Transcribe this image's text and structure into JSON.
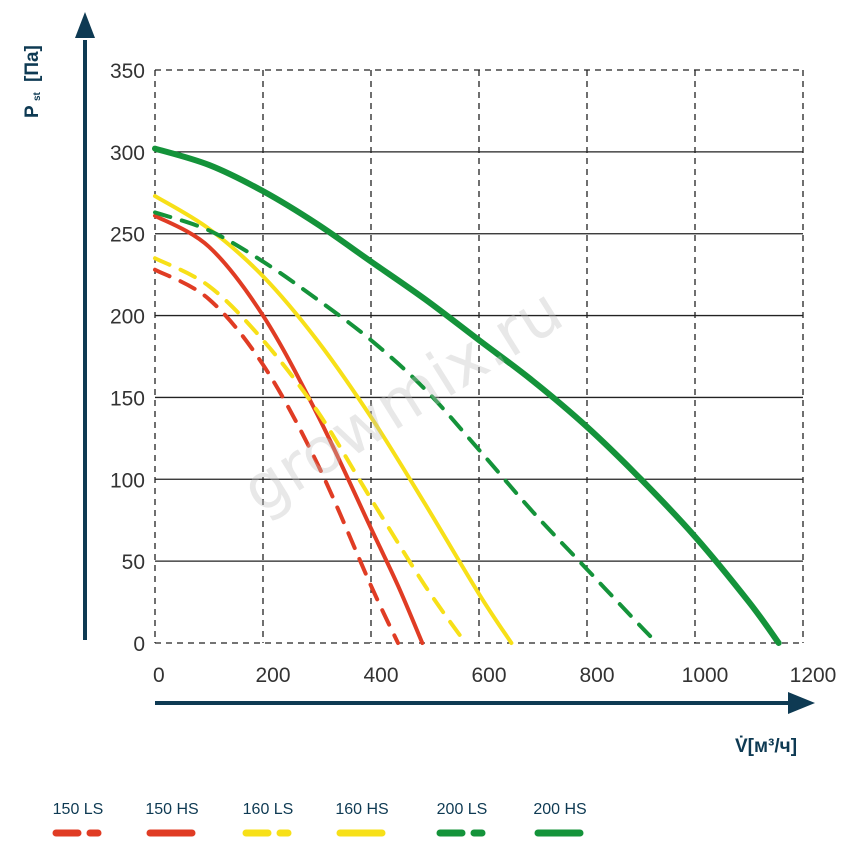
{
  "chart_data": {
    "type": "line",
    "watermark": "growmix.ru",
    "xlabel": "V̇[м³/ч]",
    "ylabel": "P st [Па]",
    "ylabel_main": "P",
    "ylabel_sub": "st",
    "ylabel_unit": "[Па]",
    "xlim": [
      0,
      1200
    ],
    "ylim": [
      0,
      350
    ],
    "x_ticks": [
      0,
      200,
      400,
      600,
      800,
      1000,
      1200
    ],
    "y_ticks": [
      0,
      50,
      100,
      150,
      200,
      250,
      300,
      350
    ],
    "grid": true,
    "legend_position": "bottom",
    "colors": {
      "red": "#e03c24",
      "yellow": "#f7e018",
      "green": "#14933a",
      "axis": "#0e3a53",
      "grid": "#222222"
    },
    "series": [
      {
        "name": "150 LS",
        "color": "#e03c24",
        "style": "dashed",
        "x": [
          0,
          100,
          200,
          300,
          400,
          450
        ],
        "y": [
          228,
          210,
          170,
          110,
          35,
          0
        ]
      },
      {
        "name": "150 HS",
        "color": "#e03c24",
        "style": "solid",
        "x": [
          0,
          100,
          200,
          300,
          400,
          450,
          495
        ],
        "y": [
          261,
          242,
          200,
          140,
          70,
          35,
          0
        ]
      },
      {
        "name": "160 LS",
        "color": "#f7e018",
        "style": "dashed",
        "x": [
          0,
          100,
          200,
          300,
          400,
          500,
          575
        ],
        "y": [
          235,
          218,
          185,
          142,
          88,
          35,
          0
        ]
      },
      {
        "name": "160 HS",
        "color": "#f7e018",
        "style": "solid",
        "x": [
          0,
          100,
          200,
          300,
          400,
          500,
          600,
          660
        ],
        "y": [
          273,
          253,
          224,
          185,
          138,
          85,
          30,
          0
        ]
      },
      {
        "name": "200 LS",
        "color": "#14933a",
        "style": "dashed",
        "x": [
          0,
          100,
          200,
          300,
          400,
          500,
          600,
          700,
          800,
          900,
          930
        ],
        "y": [
          263,
          252,
          233,
          210,
          185,
          155,
          118,
          80,
          45,
          10,
          0
        ]
      },
      {
        "name": "200 HS",
        "color": "#14933a",
        "style": "solid",
        "x": [
          0,
          100,
          200,
          300,
          400,
          500,
          600,
          700,
          800,
          900,
          1000,
          1100,
          1155
        ],
        "y": [
          302,
          292,
          276,
          256,
          233,
          210,
          185,
          160,
          132,
          100,
          65,
          25,
          0
        ]
      }
    ]
  }
}
